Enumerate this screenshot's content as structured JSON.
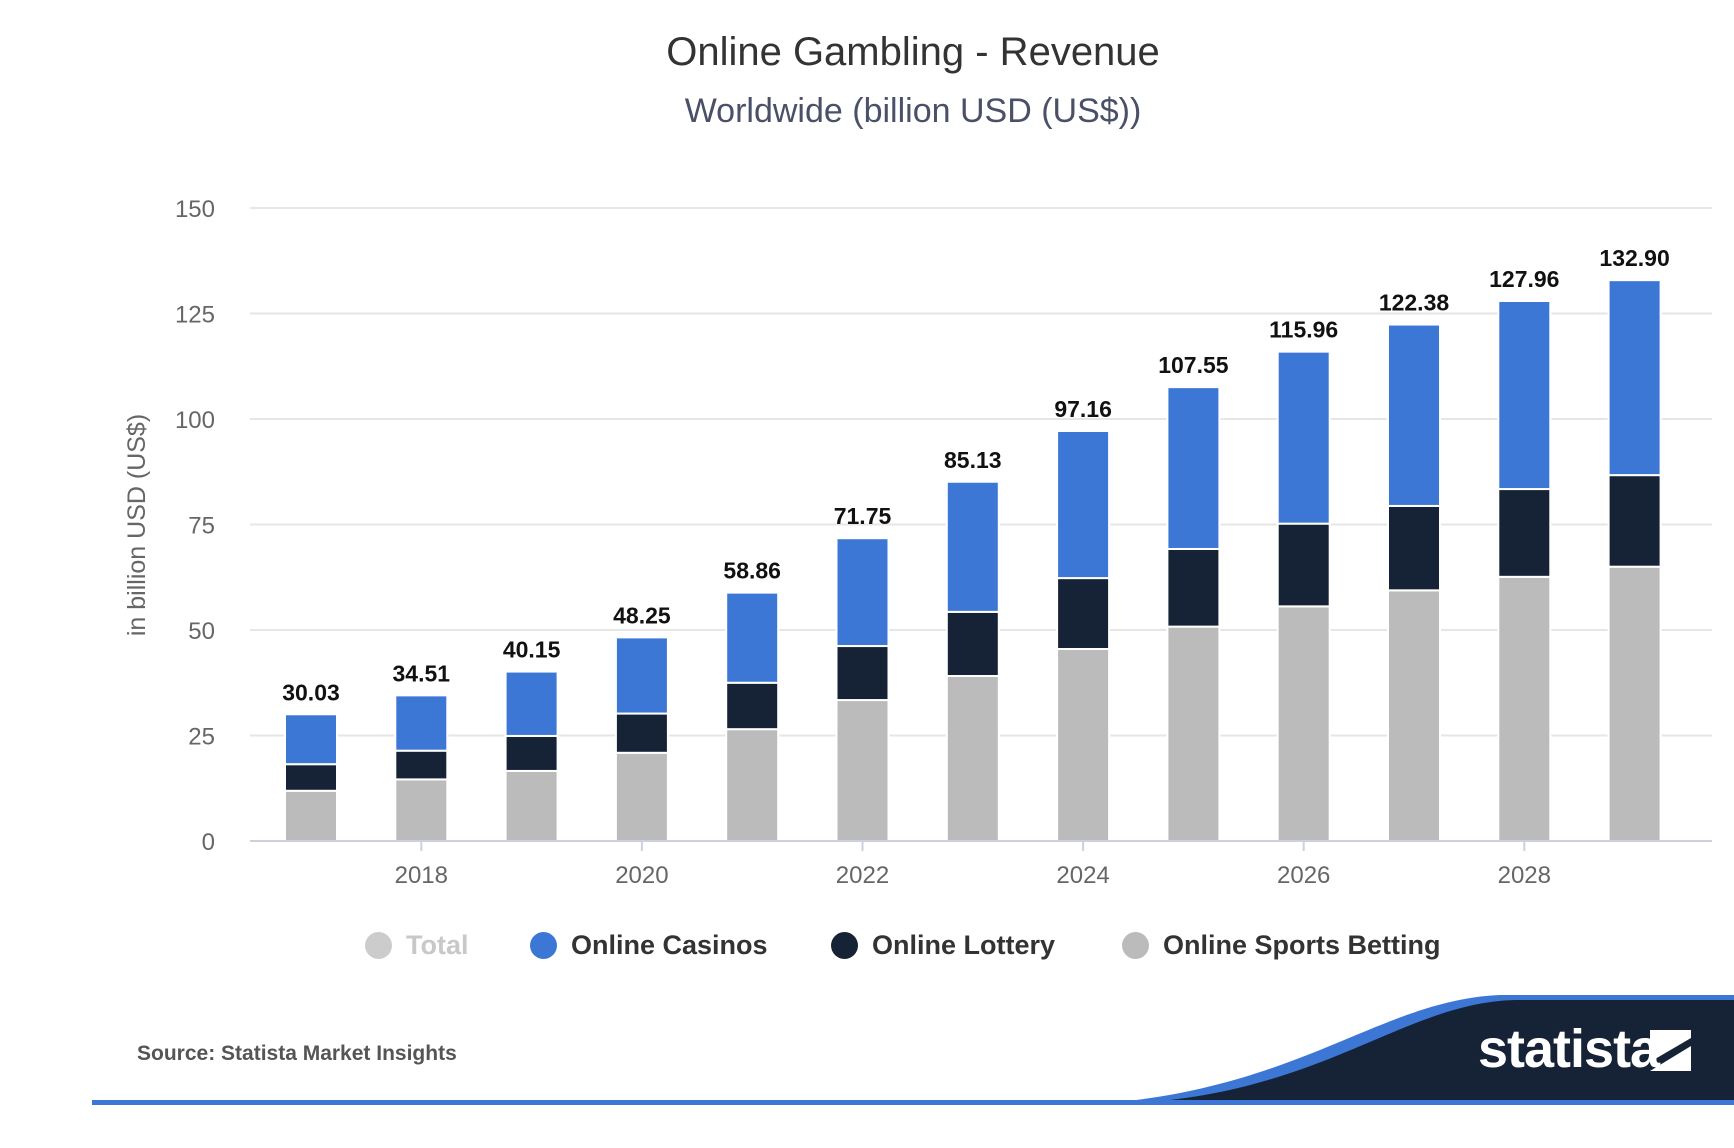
{
  "header": {
    "title": "Online Gambling - Revenue",
    "subtitle": "Worldwide (billion USD (US$))"
  },
  "chart_data": {
    "type": "bar",
    "stacked": true,
    "title": "Online Gambling - Revenue",
    "subtitle": "Worldwide (billion USD (US$))",
    "ylabel": "in billion USD (US$)",
    "xlabel": "",
    "ylim": [
      0,
      150
    ],
    "yticks": [
      "0",
      "25",
      "50",
      "75",
      "100",
      "125",
      "150"
    ],
    "x": [
      2017,
      2018,
      2019,
      2020,
      2021,
      2022,
      2023,
      2024,
      2025,
      2026,
      2027,
      2028,
      2029
    ],
    "xtick_labels": [
      "2018",
      "2020",
      "2022",
      "2024",
      "2026",
      "2028"
    ],
    "grid": true,
    "legend": "bottom",
    "series": [
      {
        "name": "Online Sports Betting",
        "color": "#bbbbbb",
        "values": [
          11.9,
          14.6,
          16.6,
          20.9,
          26.5,
          33.4,
          39.1,
          45.5,
          50.8,
          55.6,
          59.4,
          62.6,
          65.0
        ]
      },
      {
        "name": "Online Lottery",
        "color": "#162337",
        "values": [
          6.3,
          6.8,
          8.3,
          9.3,
          11.0,
          12.8,
          15.2,
          16.8,
          18.4,
          19.6,
          20.0,
          20.8,
          21.7
        ]
      },
      {
        "name": "Online Casinos",
        "color": "#3d77d6",
        "values": [
          11.83,
          13.11,
          15.25,
          18.05,
          21.36,
          25.55,
          30.83,
          34.86,
          38.35,
          40.76,
          42.98,
          44.56,
          46.2
        ]
      }
    ],
    "totals": {
      "name": "Total",
      "values": [
        30.03,
        34.51,
        40.15,
        48.25,
        58.86,
        71.75,
        85.13,
        97.16,
        107.55,
        115.96,
        122.38,
        127.96,
        132.9
      ],
      "labels": [
        "30.03",
        "34.51",
        "40.15",
        "48.25",
        "58.86",
        "71.75",
        "85.13",
        "97.16",
        "107.55",
        "115.96",
        "122.38",
        "127.96",
        "132.90"
      ]
    }
  },
  "legend": {
    "items": [
      {
        "label": "Total",
        "color": "#cccccc",
        "text_color": "#c8c8c8"
      },
      {
        "label": "Online Casinos",
        "color": "#3d77d6",
        "text_color": "#333333"
      },
      {
        "label": "Online Lottery",
        "color": "#162337",
        "text_color": "#333333"
      },
      {
        "label": "Online Sports Betting",
        "color": "#bbbbbb",
        "text_color": "#333333"
      }
    ]
  },
  "footer": {
    "source": "Source: Statista Market Insights",
    "brand": "statista"
  }
}
